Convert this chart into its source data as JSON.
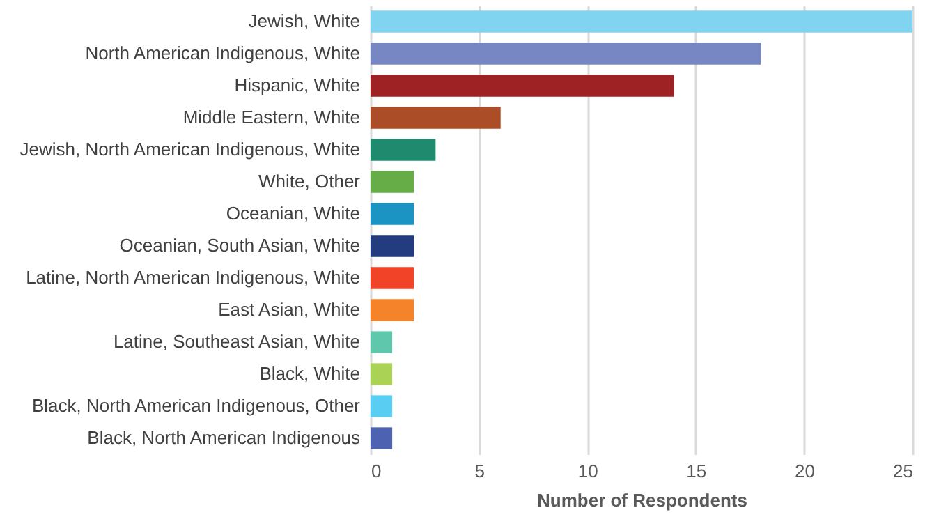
{
  "chart_data": {
    "type": "bar",
    "orientation": "horizontal",
    "xlabel": "Number of Respondents",
    "categories": [
      "Jewish, White",
      "North American Indigenous, White",
      "Hispanic, White",
      "Middle Eastern, White",
      "Jewish, North American Indigenous, White",
      "White, Other",
      "Oceanian, White",
      "Oceanian, South Asian, White",
      "Latine, North American Indigenous, White",
      "East Asian, White",
      "Latine, Southeast Asian, White",
      "Black, White",
      "Black, North American Indigenous, Other",
      "Black, North American Indigenous"
    ],
    "values": [
      25,
      18,
      14,
      6,
      3,
      2,
      2,
      2,
      2,
      2,
      1,
      1,
      1,
      1
    ],
    "colors": [
      "#80d4f0",
      "#7787c4",
      "#9e2224",
      "#ab4e27",
      "#1f8a6e",
      "#66ad47",
      "#1b93c3",
      "#233b7f",
      "#f04328",
      "#f5832a",
      "#5fc8ac",
      "#aad254",
      "#5acdf2",
      "#4e62b2"
    ],
    "xlim": [
      0,
      25
    ],
    "xticks": [
      0,
      5,
      10,
      15,
      20,
      25
    ],
    "grid": "x"
  }
}
